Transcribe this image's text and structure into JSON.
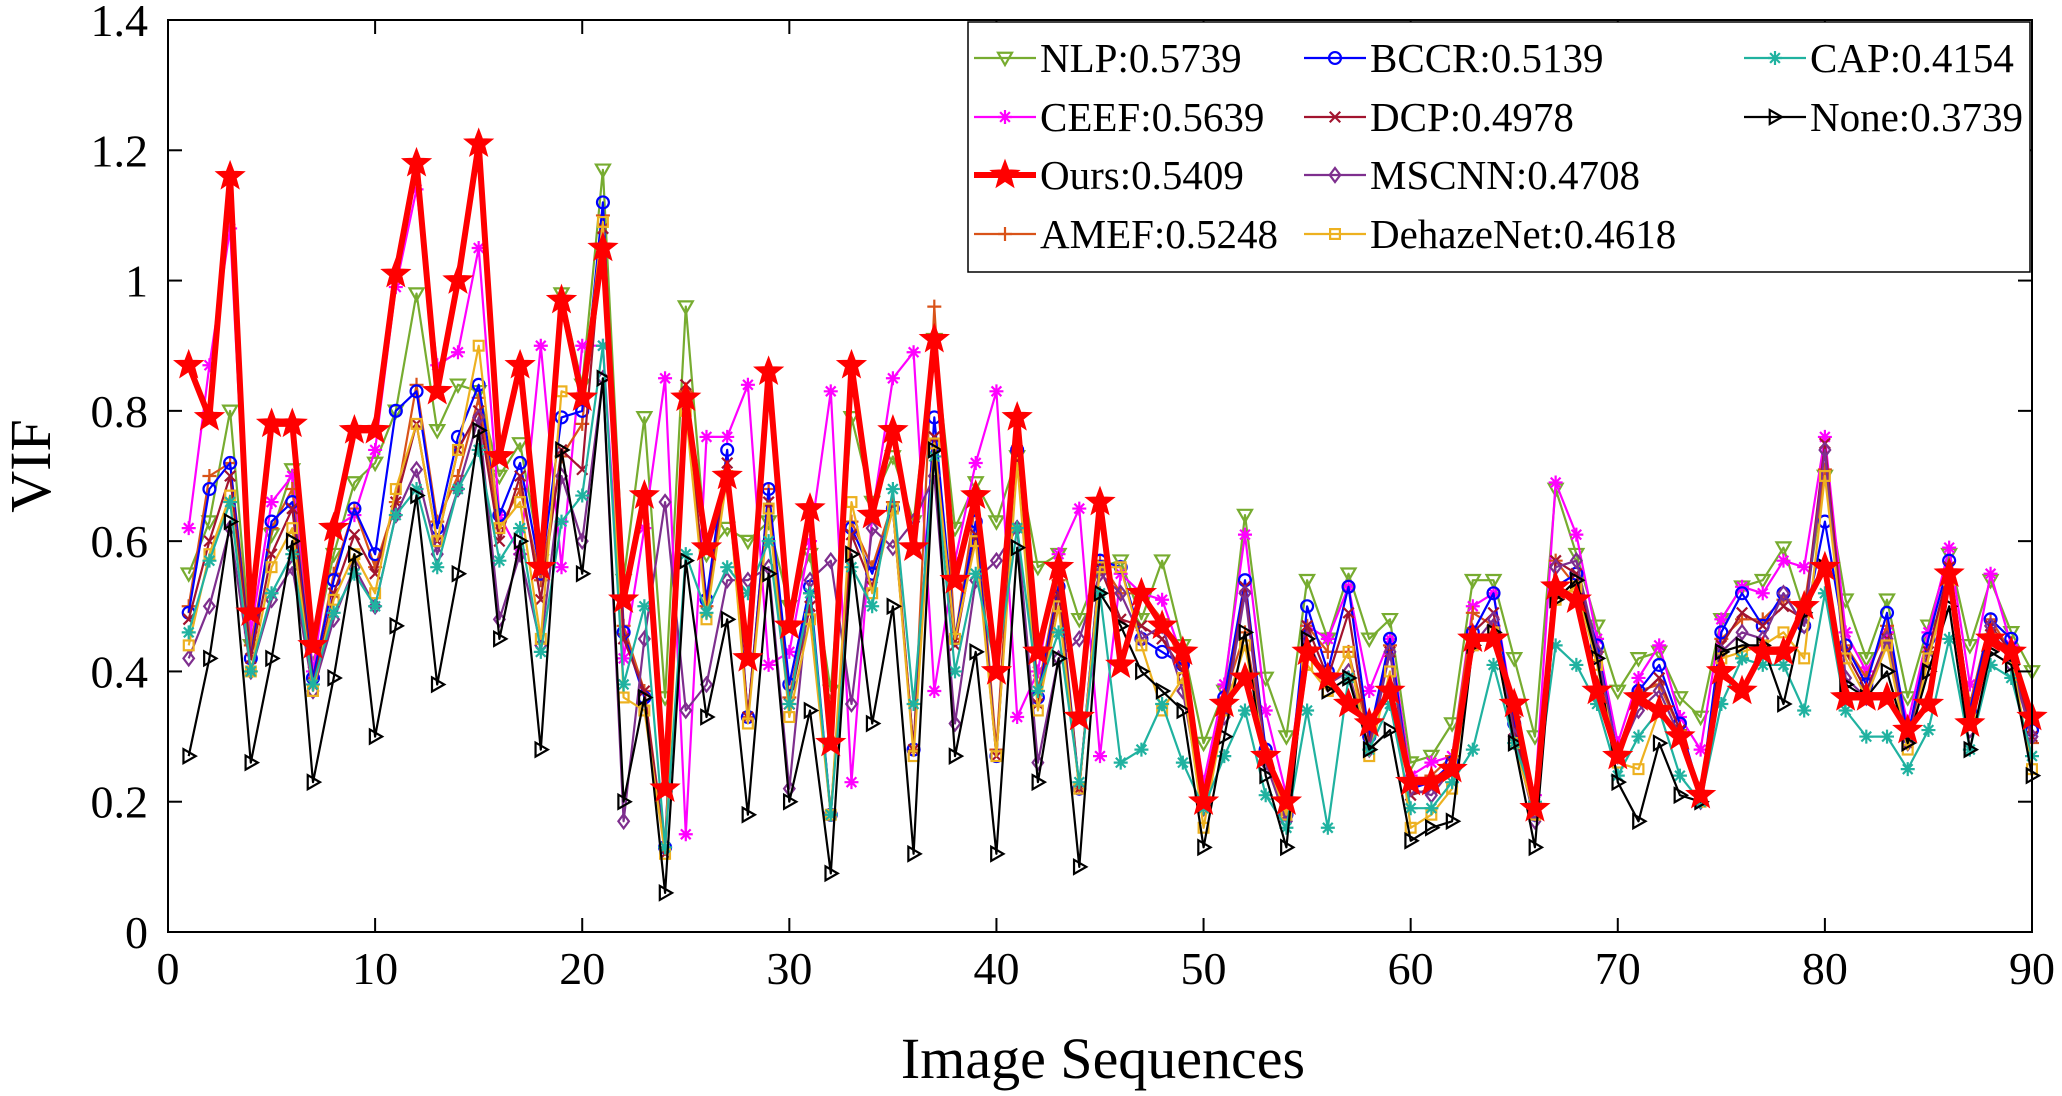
{
  "chart_data": {
    "type": "line",
    "title": "",
    "xlabel": "Image Sequences",
    "ylabel": "VIF",
    "xlim": [
      0,
      90
    ],
    "ylim": [
      0,
      1.4
    ],
    "xticks": [
      0,
      10,
      20,
      30,
      40,
      50,
      60,
      70,
      80,
      90
    ],
    "xtick_labels": [
      "0",
      "10",
      "20",
      "30",
      "40",
      "50",
      "60",
      "70",
      "80",
      "90"
    ],
    "yticks": [
      0,
      0.2,
      0.4,
      0.6,
      0.8,
      1.0,
      1.2,
      1.4
    ],
    "ytick_labels": [
      "0",
      "0.2",
      "0.4",
      "0.6",
      "0.8",
      "1",
      "1.2",
      "1.4"
    ],
    "grid": false,
    "legend_position": "top-right",
    "x": [
      1,
      2,
      3,
      4,
      5,
      6,
      7,
      8,
      9,
      10,
      11,
      12,
      13,
      14,
      15,
      16,
      17,
      18,
      19,
      20,
      21,
      22,
      23,
      24,
      25,
      26,
      27,
      28,
      29,
      30,
      31,
      32,
      33,
      34,
      35,
      36,
      37,
      38,
      39,
      40,
      41,
      42,
      43,
      44,
      45,
      46,
      47,
      48,
      49,
      50,
      51,
      52,
      53,
      54,
      55,
      56,
      57,
      58,
      59,
      60,
      61,
      62,
      63,
      64,
      65,
      66,
      67,
      68,
      69,
      70,
      71,
      72,
      73,
      74,
      75,
      76,
      77,
      78,
      79,
      80,
      81,
      82,
      83,
      84,
      85,
      86,
      87,
      88,
      89,
      90
    ],
    "series": [
      {
        "name": "NLP:0.5739",
        "color": "#77AC30",
        "marker": "triangle-down",
        "values": [
          0.55,
          0.63,
          0.8,
          0.44,
          0.61,
          0.71,
          0.43,
          0.58,
          0.69,
          0.72,
          0.8,
          0.98,
          0.77,
          0.84,
          0.83,
          0.7,
          0.75,
          0.57,
          0.98,
          0.84,
          1.17,
          0.54,
          0.79,
          0.36,
          0.96,
          0.58,
          0.62,
          0.6,
          0.63,
          0.5,
          0.58,
          0.37,
          0.79,
          0.66,
          0.73,
          0.63,
          0.91,
          0.62,
          0.69,
          0.63,
          0.73,
          0.56,
          0.58,
          0.48,
          0.56,
          0.57,
          0.48,
          0.57,
          0.44,
          0.29,
          0.37,
          0.64,
          0.39,
          0.3,
          0.54,
          0.45,
          0.55,
          0.45,
          0.48,
          0.26,
          0.27,
          0.32,
          0.54,
          0.54,
          0.42,
          0.3,
          0.68,
          0.58,
          0.47,
          0.37,
          0.42,
          0.43,
          0.36,
          0.33,
          0.48,
          0.53,
          0.54,
          0.59,
          0.49,
          0.7,
          0.51,
          0.42,
          0.51,
          0.36,
          0.47,
          0.58,
          0.44,
          0.54,
          0.46,
          0.4
        ]
      },
      {
        "name": "CEEF:0.5639",
        "color": "#FF00FF",
        "marker": "asterisk",
        "values": [
          0.62,
          0.87,
          1.08,
          0.46,
          0.66,
          0.7,
          0.4,
          0.62,
          0.64,
          0.74,
          0.99,
          1.14,
          0.87,
          0.89,
          1.05,
          0.64,
          0.58,
          0.9,
          0.56,
          0.9,
          0.9,
          0.42,
          0.62,
          0.85,
          0.15,
          0.76,
          0.76,
          0.84,
          0.41,
          0.43,
          0.6,
          0.83,
          0.23,
          0.64,
          0.85,
          0.89,
          0.37,
          0.57,
          0.72,
          0.83,
          0.33,
          0.4,
          0.58,
          0.65,
          0.27,
          0.55,
          0.52,
          0.51,
          0.42,
          0.23,
          0.38,
          0.61,
          0.34,
          0.21,
          0.47,
          0.45,
          0.53,
          0.37,
          0.45,
          0.24,
          0.26,
          0.27,
          0.5,
          0.52,
          0.33,
          0.21,
          0.69,
          0.61,
          0.45,
          0.29,
          0.39,
          0.44,
          0.33,
          0.28,
          0.48,
          0.53,
          0.52,
          0.57,
          0.56,
          0.76,
          0.46,
          0.4,
          0.46,
          0.32,
          0.46,
          0.59,
          0.38,
          0.55,
          0.44,
          0.33
        ]
      },
      {
        "name": "Ours:0.5409",
        "color": "#FF0000",
        "marker": "pentagram",
        "thick": true,
        "values": [
          0.87,
          0.79,
          1.16,
          0.49,
          0.78,
          0.78,
          0.44,
          0.62,
          0.77,
          0.77,
          1.01,
          1.18,
          0.83,
          1.0,
          1.21,
          0.73,
          0.87,
          0.56,
          0.97,
          0.82,
          1.05,
          0.51,
          0.67,
          0.22,
          0.82,
          0.59,
          0.7,
          0.42,
          0.86,
          0.47,
          0.65,
          0.29,
          0.87,
          0.64,
          0.77,
          0.59,
          0.91,
          0.54,
          0.67,
          0.4,
          0.79,
          0.43,
          0.56,
          0.33,
          0.66,
          0.41,
          0.52,
          0.47,
          0.43,
          0.2,
          0.35,
          0.39,
          0.27,
          0.2,
          0.43,
          0.39,
          0.35,
          0.32,
          0.37,
          0.23,
          0.23,
          0.25,
          0.45,
          0.45,
          0.35,
          0.19,
          0.53,
          0.51,
          0.37,
          0.27,
          0.36,
          0.34,
          0.3,
          0.21,
          0.4,
          0.37,
          0.43,
          0.43,
          0.5,
          0.56,
          0.36,
          0.36,
          0.36,
          0.31,
          0.35,
          0.55,
          0.32,
          0.45,
          0.43,
          0.33
        ]
      },
      {
        "name": "AMEF:0.5248",
        "color": "#D95319",
        "marker": "plus",
        "values": [
          0.5,
          0.7,
          0.72,
          0.44,
          0.62,
          0.68,
          0.39,
          0.55,
          0.65,
          0.56,
          0.66,
          0.84,
          0.63,
          0.7,
          0.82,
          0.62,
          0.68,
          0.54,
          0.73,
          0.78,
          1.1,
          0.47,
          0.37,
          0.13,
          0.83,
          0.5,
          0.7,
          0.33,
          0.68,
          0.36,
          0.52,
          0.18,
          0.63,
          0.56,
          0.66,
          0.28,
          0.96,
          0.45,
          0.66,
          0.28,
          0.78,
          0.37,
          0.54,
          0.22,
          0.57,
          0.52,
          0.52,
          0.48,
          0.41,
          0.21,
          0.36,
          0.46,
          0.28,
          0.18,
          0.47,
          0.43,
          0.43,
          0.3,
          0.44,
          0.23,
          0.24,
          0.27,
          0.49,
          0.47,
          0.33,
          0.18,
          0.57,
          0.53,
          0.43,
          0.27,
          0.37,
          0.38,
          0.31,
          0.21,
          0.45,
          0.48,
          0.48,
          0.51,
          0.5,
          0.71,
          0.44,
          0.39,
          0.47,
          0.3,
          0.43,
          0.55,
          0.35,
          0.48,
          0.43,
          0.29
        ]
      },
      {
        "name": "BCCR:0.5139",
        "color": "#0000FF",
        "marker": "circle",
        "values": [
          0.49,
          0.68,
          0.72,
          0.42,
          0.63,
          0.66,
          0.39,
          0.54,
          0.65,
          0.58,
          0.8,
          0.83,
          0.62,
          0.76,
          0.84,
          0.64,
          0.72,
          0.55,
          0.79,
          0.8,
          1.12,
          0.46,
          0.36,
          0.13,
          0.81,
          0.51,
          0.74,
          0.33,
          0.68,
          0.38,
          0.53,
          0.18,
          0.62,
          0.55,
          0.65,
          0.28,
          0.79,
          0.45,
          0.63,
          0.27,
          0.74,
          0.36,
          0.53,
          0.22,
          0.57,
          0.56,
          0.45,
          0.43,
          0.41,
          0.2,
          0.36,
          0.54,
          0.28,
          0.18,
          0.5,
          0.4,
          0.53,
          0.3,
          0.45,
          0.22,
          0.23,
          0.26,
          0.46,
          0.52,
          0.32,
          0.18,
          0.53,
          0.55,
          0.44,
          0.27,
          0.37,
          0.41,
          0.32,
          0.21,
          0.46,
          0.52,
          0.47,
          0.52,
          0.47,
          0.63,
          0.44,
          0.38,
          0.49,
          0.3,
          0.45,
          0.57,
          0.34,
          0.48,
          0.45,
          0.31
        ]
      },
      {
        "name": "DCP:0.4978",
        "color": "#A2142F",
        "marker": "x",
        "values": [
          0.48,
          0.6,
          0.7,
          0.42,
          0.58,
          0.65,
          0.38,
          0.52,
          0.61,
          0.55,
          0.66,
          0.78,
          0.6,
          0.74,
          0.8,
          0.6,
          0.7,
          0.51,
          0.74,
          0.71,
          1.08,
          0.45,
          0.37,
          0.12,
          0.84,
          0.49,
          0.72,
          0.33,
          0.66,
          0.35,
          0.5,
          0.18,
          0.61,
          0.53,
          0.65,
          0.28,
          0.76,
          0.44,
          0.61,
          0.27,
          0.74,
          0.35,
          0.52,
          0.22,
          0.56,
          0.48,
          0.47,
          0.45,
          0.4,
          0.2,
          0.34,
          0.53,
          0.27,
          0.18,
          0.47,
          0.39,
          0.49,
          0.29,
          0.43,
          0.21,
          0.22,
          0.26,
          0.46,
          0.49,
          0.31,
          0.18,
          0.57,
          0.55,
          0.42,
          0.27,
          0.36,
          0.39,
          0.31,
          0.2,
          0.44,
          0.49,
          0.47,
          0.5,
          0.48,
          0.75,
          0.43,
          0.37,
          0.45,
          0.29,
          0.43,
          0.56,
          0.33,
          0.47,
          0.43,
          0.3
        ]
      },
      {
        "name": "MSCNN:0.4708",
        "color": "#7E2F8E",
        "marker": "diamond",
        "values": [
          0.42,
          0.5,
          0.62,
          0.4,
          0.51,
          0.56,
          0.37,
          0.48,
          0.56,
          0.5,
          0.64,
          0.71,
          0.58,
          0.68,
          0.79,
          0.48,
          0.58,
          0.44,
          0.7,
          0.6,
          0.85,
          0.17,
          0.45,
          0.66,
          0.34,
          0.38,
          0.54,
          0.54,
          0.56,
          0.22,
          0.54,
          0.57,
          0.35,
          0.62,
          0.59,
          0.63,
          0.7,
          0.32,
          0.54,
          0.57,
          0.62,
          0.26,
          0.42,
          0.45,
          0.55,
          0.52,
          0.45,
          0.47,
          0.37,
          0.19,
          0.33,
          0.52,
          0.26,
          0.17,
          0.45,
          0.38,
          0.4,
          0.28,
          0.43,
          0.22,
          0.21,
          0.25,
          0.44,
          0.48,
          0.3,
          0.17,
          0.56,
          0.57,
          0.43,
          0.27,
          0.34,
          0.37,
          0.3,
          0.2,
          0.43,
          0.46,
          0.45,
          0.52,
          0.47,
          0.74,
          0.39,
          0.36,
          0.45,
          0.29,
          0.42,
          0.54,
          0.31,
          0.47,
          0.41,
          0.3
        ]
      },
      {
        "name": "DehazeNet:0.4618",
        "color": "#EDB120",
        "marker": "square",
        "values": [
          0.44,
          0.58,
          0.67,
          0.4,
          0.56,
          0.62,
          0.37,
          0.51,
          0.58,
          0.52,
          0.68,
          0.78,
          0.6,
          0.74,
          0.9,
          0.62,
          0.66,
          0.45,
          0.83,
          0.82,
          1.09,
          0.36,
          0.34,
          0.12,
          0.8,
          0.48,
          0.7,
          0.32,
          0.65,
          0.33,
          0.48,
          0.18,
          0.66,
          0.52,
          0.65,
          0.27,
          0.75,
          0.45,
          0.6,
          0.27,
          0.72,
          0.34,
          0.5,
          0.22,
          0.56,
          0.56,
          0.44,
          0.34,
          0.39,
          0.16,
          0.34,
          0.44,
          0.27,
          0.18,
          0.41,
          0.37,
          0.43,
          0.27,
          0.4,
          0.16,
          0.18,
          0.22,
          0.44,
          0.46,
          0.29,
          0.18,
          0.51,
          0.53,
          0.41,
          0.26,
          0.25,
          0.34,
          0.3,
          0.2,
          0.42,
          0.43,
          0.44,
          0.46,
          0.42,
          0.7,
          0.42,
          0.36,
          0.44,
          0.28,
          0.42,
          0.54,
          0.33,
          0.45,
          0.42,
          0.25
        ]
      },
      {
        "name": "CAP:0.4154",
        "color": "#20B2A0",
        "marker": "asterisk",
        "values": [
          0.46,
          0.57,
          0.66,
          0.4,
          0.52,
          0.58,
          0.38,
          0.49,
          0.55,
          0.5,
          0.64,
          0.68,
          0.56,
          0.68,
          0.74,
          0.57,
          0.62,
          0.43,
          0.63,
          0.67,
          0.9,
          0.38,
          0.5,
          0.13,
          0.58,
          0.49,
          0.56,
          0.52,
          0.6,
          0.35,
          0.52,
          0.18,
          0.56,
          0.5,
          0.68,
          0.35,
          0.73,
          0.4,
          0.55,
          0.4,
          0.62,
          0.37,
          0.46,
          0.23,
          0.52,
          0.26,
          0.28,
          0.35,
          0.26,
          0.19,
          0.27,
          0.34,
          0.21,
          0.16,
          0.34,
          0.16,
          0.39,
          0.28,
          0.35,
          0.19,
          0.19,
          0.23,
          0.28,
          0.41,
          0.29,
          0.2,
          0.44,
          0.41,
          0.35,
          0.24,
          0.3,
          0.34,
          0.24,
          0.2,
          0.35,
          0.42,
          0.41,
          0.41,
          0.34,
          0.52,
          0.34,
          0.3,
          0.3,
          0.25,
          0.31,
          0.45,
          0.28,
          0.41,
          0.39,
          0.27
        ]
      },
      {
        "name": "None:0.3739",
        "color": "#000000",
        "marker": "triangle-right",
        "values": [
          0.27,
          0.42,
          0.63,
          0.26,
          0.42,
          0.6,
          0.23,
          0.39,
          0.58,
          0.3,
          0.47,
          0.67,
          0.38,
          0.55,
          0.77,
          0.45,
          0.6,
          0.28,
          0.74,
          0.55,
          0.85,
          0.2,
          0.36,
          0.06,
          0.57,
          0.33,
          0.48,
          0.18,
          0.55,
          0.2,
          0.34,
          0.09,
          0.58,
          0.32,
          0.5,
          0.12,
          0.74,
          0.27,
          0.43,
          0.12,
          0.59,
          0.23,
          0.42,
          0.1,
          0.52,
          0.47,
          0.4,
          0.37,
          0.34,
          0.13,
          0.3,
          0.46,
          0.24,
          0.13,
          0.45,
          0.37,
          0.39,
          0.28,
          0.31,
          0.14,
          0.16,
          0.17,
          0.44,
          0.46,
          0.29,
          0.13,
          0.51,
          0.54,
          0.42,
          0.23,
          0.17,
          0.29,
          0.21,
          0.2,
          0.43,
          0.44,
          0.44,
          0.35,
          0.49,
          0.56,
          0.38,
          0.36,
          0.4,
          0.29,
          0.4,
          0.5,
          0.28,
          0.43,
          0.41,
          0.24
        ]
      }
    ],
    "legend_order": [
      0,
      4,
      8,
      1,
      5,
      9,
      2,
      6,
      3,
      7
    ]
  }
}
